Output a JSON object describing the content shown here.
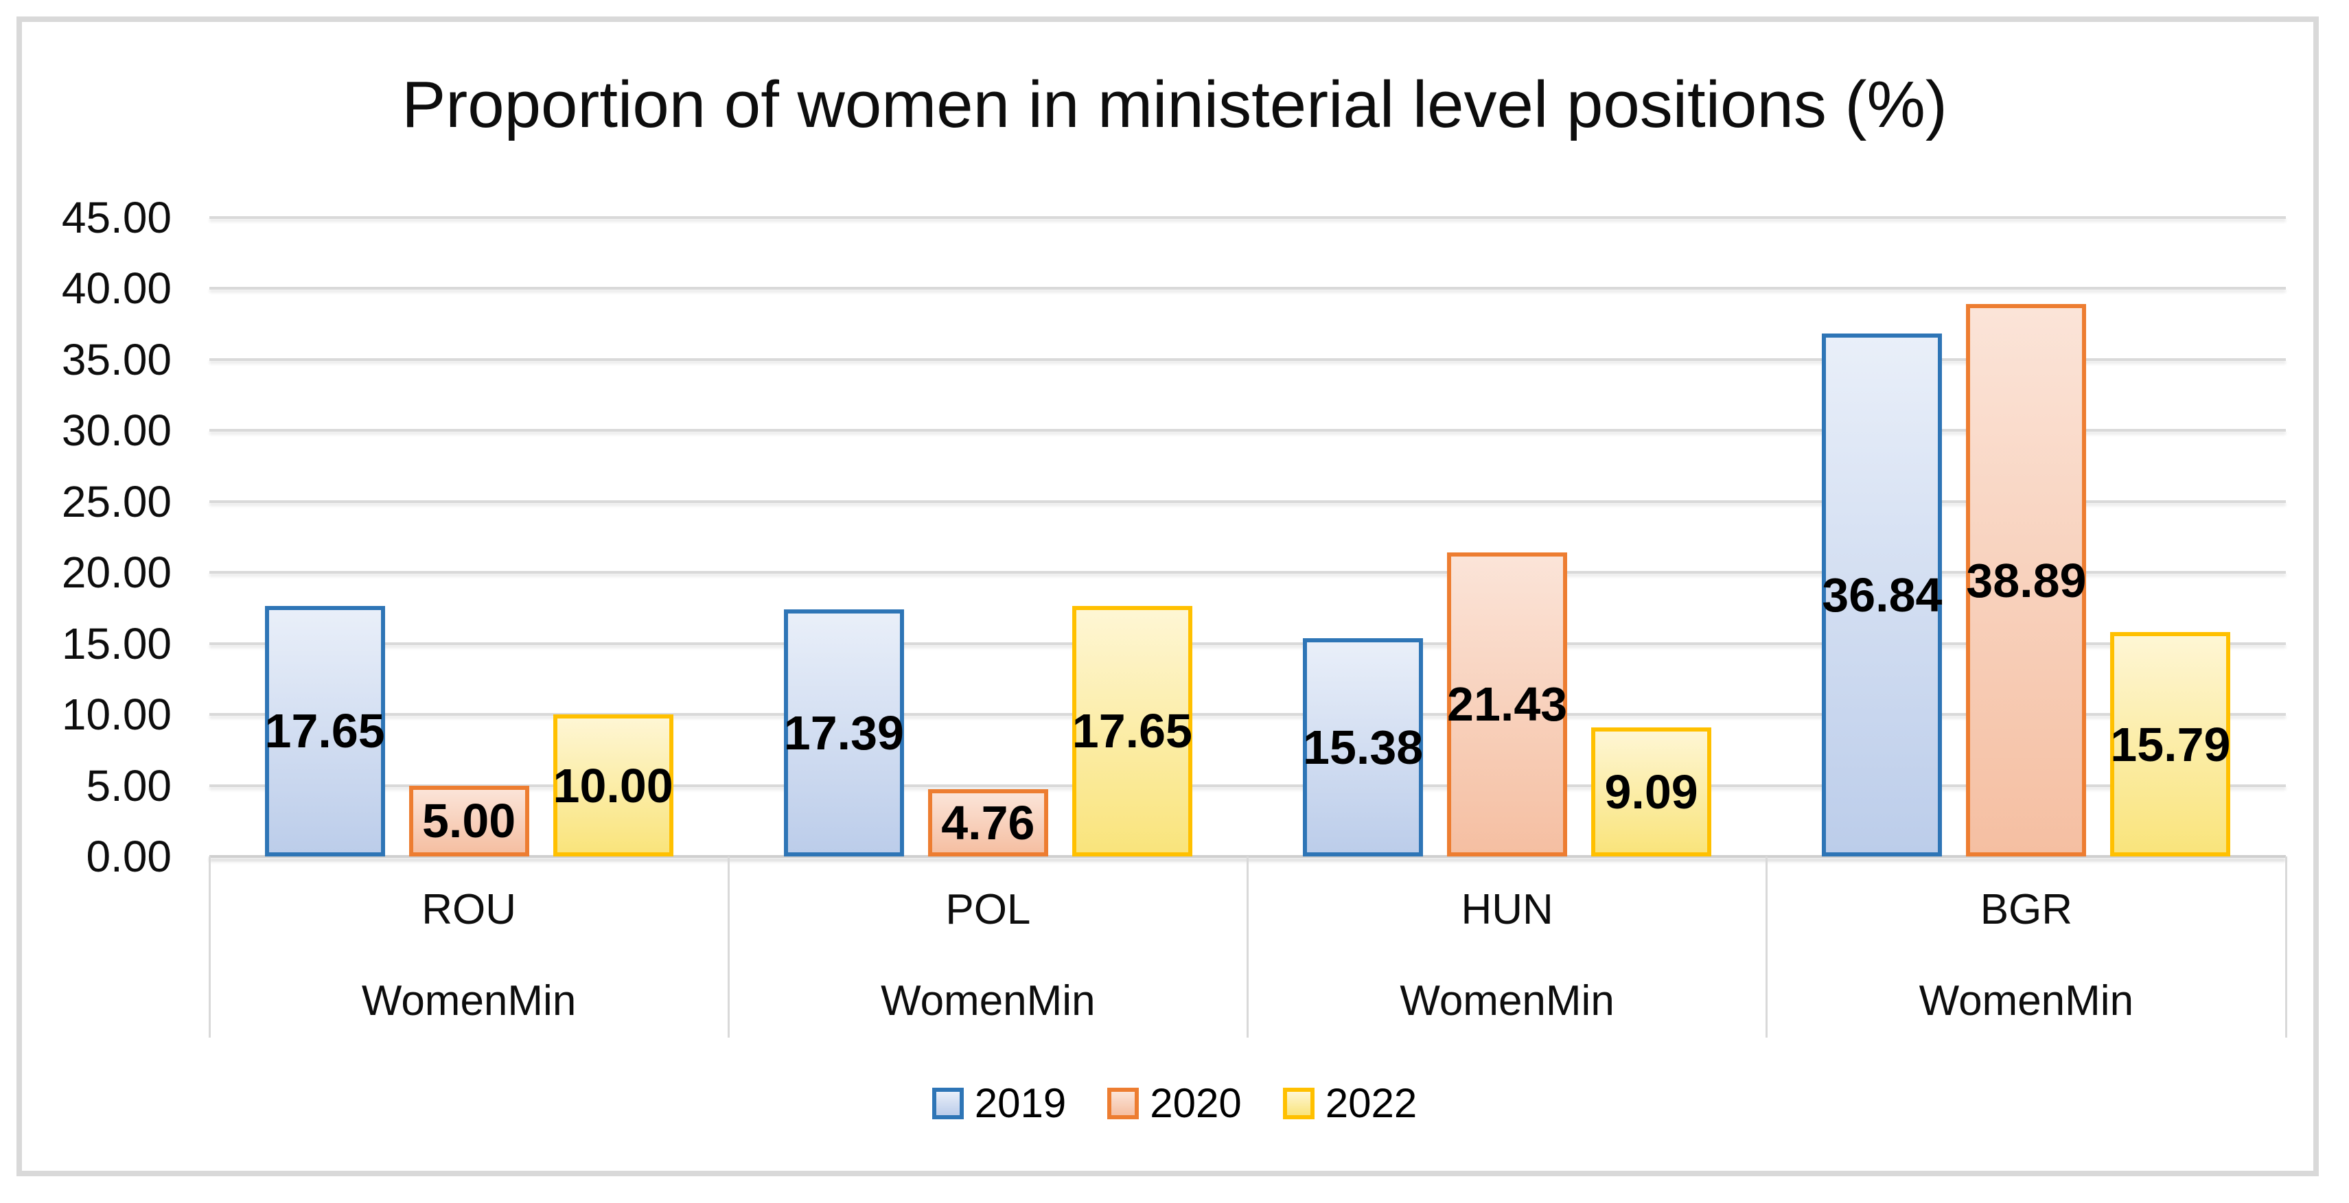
{
  "chart_data": {
    "type": "bar",
    "title": "Proportion of women in ministerial level positions (%)",
    "categories": [
      "ROU",
      "POL",
      "HUN",
      "BGR"
    ],
    "category_sublabels": [
      "WomenMin",
      "WomenMin",
      "WomenMin",
      "WomenMin"
    ],
    "series": [
      {
        "name": "2019",
        "values": [
          17.65,
          17.39,
          15.38,
          36.84
        ],
        "labels": [
          "17.65",
          "17.39",
          "15.38",
          "36.84"
        ],
        "border_color": "#2E75B6",
        "fill_top": "#E9EFF9",
        "fill_bottom": "#BCCDEA"
      },
      {
        "name": "2020",
        "values": [
          5.0,
          4.76,
          21.43,
          38.89
        ],
        "labels": [
          "5.00",
          "4.76",
          "21.43",
          "38.89"
        ],
        "border_color": "#ED7D31",
        "fill_top": "#FBE4D8",
        "fill_bottom": "#F5BFA2"
      },
      {
        "name": "2022",
        "values": [
          10.0,
          17.65,
          9.09,
          15.79
        ],
        "labels": [
          "10.00",
          "17.65",
          "9.09",
          "15.79"
        ],
        "border_color": "#FFC000",
        "fill_top": "#FEF6D4",
        "fill_bottom": "#F9E47C"
      }
    ],
    "ylim": [
      0,
      45
    ],
    "ytick_step": 5,
    "yticks": [
      "45.00",
      "40.00",
      "35.00",
      "30.00",
      "25.00",
      "20.00",
      "15.00",
      "10.00",
      "5.00",
      "0.00"
    ],
    "grid": true,
    "legend": [
      "2019",
      "2020",
      "2022"
    ],
    "legend_position": "bottom"
  },
  "colors": {
    "grid": "#D9D9D9",
    "frame": "#D9D9D9",
    "text": "#000000"
  }
}
